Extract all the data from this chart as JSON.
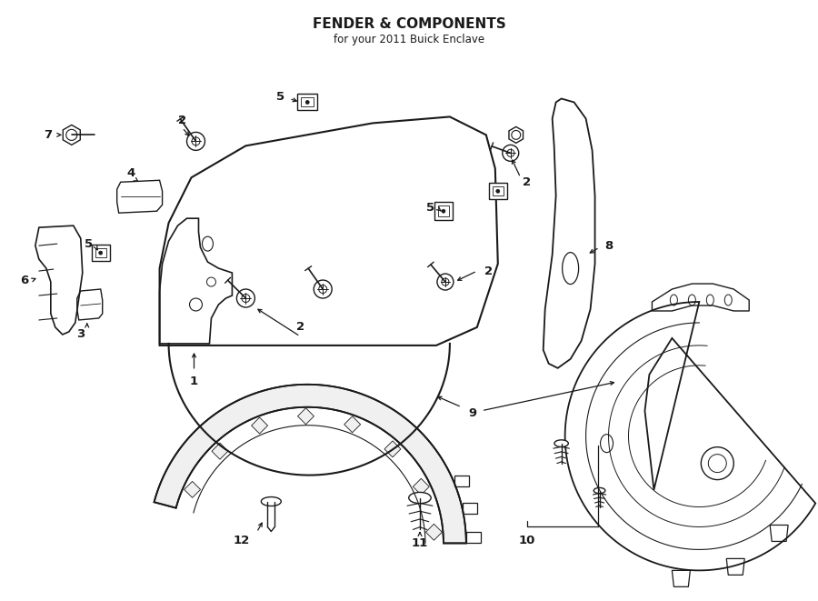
{
  "title": "FENDER & COMPONENTS",
  "subtitle": "for your 2011 Buick Enclave",
  "bg_color": "#ffffff",
  "line_color": "#1a1a1a",
  "fig_width": 9.0,
  "fig_height": 6.61,
  "dpi": 100
}
